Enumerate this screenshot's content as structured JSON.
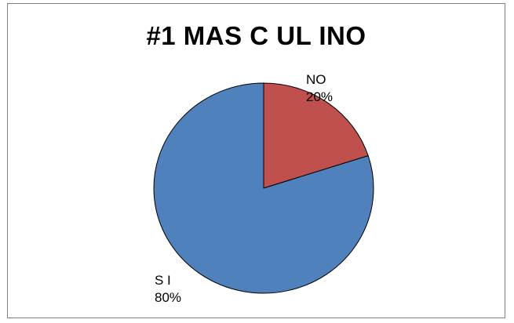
{
  "chart_data": {
    "type": "pie",
    "title": "#1 MAS C UL INO",
    "categories": [
      "NO",
      "S I"
    ],
    "values": [
      20,
      80
    ],
    "value_labels": [
      "20%",
      "80%"
    ],
    "colors": [
      "#c0504d",
      "#4f81bd"
    ],
    "legend": "none"
  }
}
